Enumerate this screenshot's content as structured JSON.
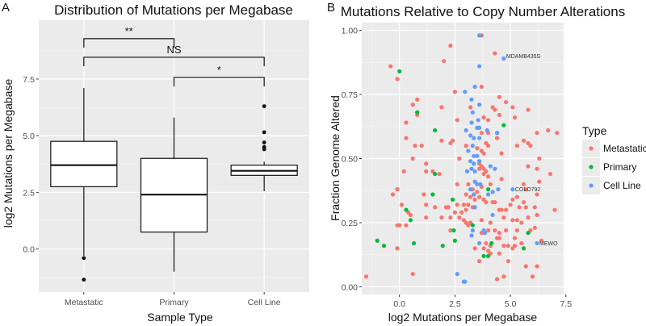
{
  "chart_data": [
    {
      "type": "box",
      "panel_label": "A",
      "title": "Distribution of Mutations per Megabase",
      "xlabel": "Sample Type",
      "ylabel": "log2 Mutations per Megabase",
      "ylim": [
        -1.9,
        10.7
      ],
      "yticks": [
        0.0,
        2.5,
        5.0,
        7.5
      ],
      "ytick_labels": [
        "0.0",
        "2.5",
        "5.0",
        "7.5"
      ],
      "grid": true,
      "categories": [
        "Metastatic",
        "Primary",
        "Cell Line"
      ],
      "boxes": [
        {
          "q1": 2.75,
          "median": 3.7,
          "q3": 4.75,
          "whisker_low": -0.3,
          "whisker_high": 7.1,
          "outliers": [
            -0.4,
            -1.35
          ]
        },
        {
          "q1": 0.75,
          "median": 2.4,
          "q3": 4.0,
          "whisker_low": -1.0,
          "whisker_high": 5.8,
          "outliers": []
        },
        {
          "q1": 3.25,
          "median": 3.45,
          "q3": 3.7,
          "whisker_low": 2.55,
          "whisker_high": 3.85,
          "outliers": [
            6.3,
            5.15,
            4.7,
            4.5,
            4.4
          ]
        }
      ],
      "comparisons": [
        {
          "from": 0,
          "to": 1,
          "y": 9.28,
          "label": "**"
        },
        {
          "from": 0,
          "to": 2,
          "y": 8.46,
          "label": "NS"
        },
        {
          "from": 1,
          "to": 2,
          "y": 7.57,
          "label": "*"
        }
      ]
    },
    {
      "type": "scatter",
      "panel_label": "B",
      "title": "Mutations Relative to Copy Number Alterations",
      "xlabel": "log2 Mutations per Megabase",
      "ylabel": "Fraction Genome Altered",
      "xlim": [
        -1.7,
        7.4
      ],
      "ylim": [
        -0.03,
        1.03
      ],
      "xticks": [
        0.0,
        2.5,
        5.0,
        7.5
      ],
      "xtick_labels": [
        "0.0",
        "2.5",
        "5.0",
        "7.5"
      ],
      "yticks": [
        0.0,
        0.25,
        0.5,
        0.75,
        1.0
      ],
      "ytick_labels": [
        "0.00",
        "0.25",
        "0.50",
        "0.75",
        "1.00"
      ],
      "grid": true,
      "legend": {
        "title": "Type",
        "placement": "right",
        "entries": [
          {
            "key": "m",
            "label": "Metastatic",
            "color": "#F8766D"
          },
          {
            "key": "p",
            "label": "Primary",
            "color": "#00BA38"
          },
          {
            "key": "c",
            "label": "Cell Line",
            "color": "#619CFF"
          }
        ]
      },
      "annotations": [
        {
          "text": "MDAMB435S",
          "x": 4.7,
          "y": 0.9
        },
        {
          "text": "COLO792",
          "x": 5.1,
          "y": 0.38
        },
        {
          "text": "MEWO",
          "x": 6.2,
          "y": 0.17
        }
      ],
      "points": [
        [
          3.7,
          0.98,
          "m"
        ],
        [
          2.3,
          0.94,
          "m"
        ],
        [
          4.3,
          0.91,
          "m"
        ],
        [
          2.0,
          0.88,
          "m"
        ],
        [
          -0.4,
          0.86,
          "m"
        ],
        [
          -0.1,
          0.81,
          "m"
        ],
        [
          2.5,
          0.76,
          "m"
        ],
        [
          3.7,
          0.78,
          "m"
        ],
        [
          4.5,
          0.74,
          "m"
        ],
        [
          4.8,
          0.72,
          "m"
        ],
        [
          0.8,
          0.73,
          "m"
        ],
        [
          0.6,
          0.71,
          "m"
        ],
        [
          1.9,
          0.7,
          "m"
        ],
        [
          3.2,
          0.7,
          "m"
        ],
        [
          4.2,
          0.7,
          "m"
        ],
        [
          4.3,
          0.69,
          "m"
        ],
        [
          5.1,
          0.7,
          "m"
        ],
        [
          5.8,
          0.69,
          "m"
        ],
        [
          0.8,
          0.67,
          "m"
        ],
        [
          3.8,
          0.66,
          "m"
        ],
        [
          4.5,
          0.67,
          "m"
        ],
        [
          5.2,
          0.66,
          "m"
        ],
        [
          0.3,
          0.64,
          "m"
        ],
        [
          2.6,
          0.65,
          "m"
        ],
        [
          4.0,
          0.65,
          "m"
        ],
        [
          3.7,
          0.6,
          "m"
        ],
        [
          4.0,
          0.6,
          "m"
        ],
        [
          4.4,
          0.58,
          "m"
        ],
        [
          6.2,
          0.6,
          "m"
        ],
        [
          6.7,
          0.61,
          "m"
        ],
        [
          7.1,
          0.6,
          "m"
        ],
        [
          0.3,
          0.58,
          "m"
        ],
        [
          1.9,
          0.57,
          "m"
        ],
        [
          2.3,
          0.56,
          "m"
        ],
        [
          2.4,
          0.57,
          "m"
        ],
        [
          3.9,
          0.56,
          "m"
        ],
        [
          4.0,
          0.55,
          "m"
        ],
        [
          5.3,
          0.55,
          "m"
        ],
        [
          5.6,
          0.57,
          "m"
        ],
        [
          5.9,
          0.55,
          "m"
        ],
        [
          5.8,
          0.56,
          "m"
        ],
        [
          0.7,
          0.55,
          "m"
        ],
        [
          1.0,
          0.55,
          "m"
        ],
        [
          3.0,
          0.55,
          "m"
        ],
        [
          3.7,
          0.53,
          "m"
        ],
        [
          3.5,
          0.54,
          "m"
        ],
        [
          3.8,
          0.52,
          "m"
        ],
        [
          4.6,
          0.52,
          "m"
        ],
        [
          2.7,
          0.5,
          "m"
        ],
        [
          0.6,
          0.5,
          "m"
        ],
        [
          1.2,
          0.48,
          "m"
        ],
        [
          3.6,
          0.48,
          "m"
        ],
        [
          3.7,
          0.47,
          "m"
        ],
        [
          3.8,
          0.46,
          "m"
        ],
        [
          3.9,
          0.45,
          "m"
        ],
        [
          3.6,
          0.46,
          "m"
        ],
        [
          3.8,
          0.44,
          "m"
        ],
        [
          4.0,
          0.43,
          "m"
        ],
        [
          6.2,
          0.46,
          "m"
        ],
        [
          6.3,
          0.5,
          "m"
        ],
        [
          5.8,
          0.47,
          "m"
        ],
        [
          6.8,
          0.44,
          "m"
        ],
        [
          0.2,
          0.45,
          "m"
        ],
        [
          1.2,
          0.45,
          "m"
        ],
        [
          1.5,
          0.45,
          "m"
        ],
        [
          1.8,
          0.44,
          "m"
        ],
        [
          4.6,
          0.42,
          "m"
        ],
        [
          6.3,
          0.41,
          "m"
        ],
        [
          5.7,
          0.38,
          "m"
        ],
        [
          5.6,
          0.4,
          "m"
        ],
        [
          2.6,
          0.4,
          "m"
        ],
        [
          3.1,
          0.4,
          "m"
        ],
        [
          3.7,
          0.39,
          "m"
        ],
        [
          4.1,
          0.4,
          "m"
        ],
        [
          3.3,
          0.38,
          "m"
        ],
        [
          3.5,
          0.37,
          "m"
        ],
        [
          3.0,
          0.36,
          "m"
        ],
        [
          3.2,
          0.35,
          "m"
        ],
        [
          3.4,
          0.34,
          "m"
        ],
        [
          3.6,
          0.35,
          "m"
        ],
        [
          3.8,
          0.34,
          "m"
        ],
        [
          3.9,
          0.33,
          "m"
        ],
        [
          4.2,
          0.33,
          "m"
        ],
        [
          4.3,
          0.33,
          "m"
        ],
        [
          5.1,
          0.34,
          "m"
        ],
        [
          5.3,
          0.35,
          "m"
        ],
        [
          5.6,
          0.33,
          "m"
        ],
        [
          6.2,
          0.36,
          "m"
        ],
        [
          1.1,
          0.36,
          "m"
        ],
        [
          -0.3,
          0.36,
          "m"
        ],
        [
          -0.1,
          0.38,
          "m"
        ],
        [
          0.1,
          0.32,
          "m"
        ],
        [
          1.2,
          0.32,
          "m"
        ],
        [
          1.6,
          0.31,
          "m"
        ],
        [
          2.1,
          0.31,
          "m"
        ],
        [
          2.2,
          0.31,
          "m"
        ],
        [
          2.6,
          0.32,
          "m"
        ],
        [
          2.9,
          0.32,
          "m"
        ],
        [
          3.1,
          0.32,
          "m"
        ],
        [
          3.3,
          0.31,
          "m"
        ],
        [
          3.0,
          0.3,
          "m"
        ],
        [
          2.8,
          0.29,
          "m"
        ],
        [
          2.5,
          0.29,
          "m"
        ],
        [
          4.5,
          0.3,
          "m"
        ],
        [
          4.6,
          0.3,
          "m"
        ],
        [
          4.8,
          0.3,
          "m"
        ],
        [
          5.0,
          0.32,
          "m"
        ],
        [
          5.4,
          0.31,
          "m"
        ],
        [
          5.7,
          0.31,
          "m"
        ],
        [
          6.1,
          0.31,
          "m"
        ],
        [
          7.0,
          0.3,
          "m"
        ],
        [
          0.4,
          0.29,
          "m"
        ],
        [
          0.5,
          0.28,
          "m"
        ],
        [
          2.3,
          0.27,
          "m"
        ],
        [
          2.7,
          0.27,
          "m"
        ],
        [
          2.9,
          0.26,
          "m"
        ],
        [
          3.0,
          0.25,
          "m"
        ],
        [
          3.1,
          0.24,
          "m"
        ],
        [
          3.2,
          0.25,
          "m"
        ],
        [
          3.7,
          0.26,
          "m"
        ],
        [
          4.1,
          0.25,
          "m"
        ],
        [
          4.7,
          0.27,
          "m"
        ],
        [
          5.1,
          0.26,
          "m"
        ],
        [
          5.3,
          0.26,
          "m"
        ],
        [
          5.5,
          0.25,
          "m"
        ],
        [
          5.8,
          0.27,
          "m"
        ],
        [
          6.2,
          0.28,
          "m"
        ],
        [
          1.9,
          0.27,
          "m"
        ],
        [
          1.2,
          0.27,
          "m"
        ],
        [
          -0.1,
          0.24,
          "m"
        ],
        [
          0.0,
          0.24,
          "m"
        ],
        [
          0.3,
          0.24,
          "m"
        ],
        [
          2.3,
          0.22,
          "m"
        ],
        [
          3.7,
          0.21,
          "m"
        ],
        [
          4.0,
          0.22,
          "m"
        ],
        [
          4.3,
          0.22,
          "m"
        ],
        [
          4.5,
          0.21,
          "m"
        ],
        [
          4.8,
          0.22,
          "m"
        ],
        [
          5.3,
          0.22,
          "m"
        ],
        [
          5.9,
          0.22,
          "m"
        ],
        [
          6.1,
          0.23,
          "m"
        ],
        [
          4.4,
          0.19,
          "m"
        ],
        [
          4.5,
          0.19,
          "m"
        ],
        [
          4.7,
          0.16,
          "m"
        ],
        [
          5.2,
          0.16,
          "m"
        ],
        [
          5.5,
          0.17,
          "m"
        ],
        [
          5.2,
          0.19,
          "m"
        ],
        [
          6.4,
          0.18,
          "m"
        ],
        [
          4.1,
          0.16,
          "m"
        ],
        [
          3.9,
          0.17,
          "m"
        ],
        [
          3.4,
          0.15,
          "m"
        ],
        [
          3.8,
          0.15,
          "m"
        ],
        [
          4.0,
          0.14,
          "m"
        ],
        [
          4.5,
          0.13,
          "m"
        ],
        [
          4.9,
          0.16,
          "m"
        ],
        [
          5.1,
          0.15,
          "m"
        ],
        [
          -0.1,
          0.15,
          "m"
        ],
        [
          4.1,
          0.13,
          "m"
        ],
        [
          3.6,
          0.1,
          "m"
        ],
        [
          4.9,
          0.1,
          "m"
        ],
        [
          5.7,
          0.08,
          "m"
        ],
        [
          6.2,
          0.08,
          "m"
        ],
        [
          4.4,
          0.03,
          "m"
        ],
        [
          4.7,
          0.04,
          "m"
        ],
        [
          6.0,
          0.04,
          "m"
        ],
        [
          0.6,
          0.05,
          "m"
        ],
        [
          -1.5,
          0.04,
          "m"
        ],
        [
          0.0,
          0.84,
          "p"
        ],
        [
          0.8,
          0.68,
          "p"
        ],
        [
          1.6,
          0.61,
          "p"
        ],
        [
          4.7,
          0.63,
          "p"
        ],
        [
          4.4,
          0.6,
          "p"
        ],
        [
          1.6,
          0.44,
          "p"
        ],
        [
          1.5,
          0.36,
          "p"
        ],
        [
          4.0,
          0.38,
          "p"
        ],
        [
          2.4,
          0.34,
          "p"
        ],
        [
          0.3,
          0.3,
          "p"
        ],
        [
          0.5,
          0.26,
          "p"
        ],
        [
          3.3,
          0.24,
          "p"
        ],
        [
          2.45,
          0.22,
          "p"
        ],
        [
          5.8,
          0.21,
          "p"
        ],
        [
          2.5,
          0.18,
          "p"
        ],
        [
          -1.0,
          0.18,
          "p"
        ],
        [
          -0.7,
          0.16,
          "p"
        ],
        [
          0.65,
          0.17,
          "p"
        ],
        [
          1.95,
          0.16,
          "p"
        ],
        [
          4.15,
          0.17,
          "p"
        ],
        [
          5.6,
          0.15,
          "p"
        ],
        [
          3.8,
          0.12,
          "p"
        ],
        [
          4.0,
          0.12,
          "p"
        ],
        [
          3.6,
          0.98,
          "c"
        ],
        [
          4.7,
          0.89,
          "c"
        ],
        [
          3.6,
          0.86,
          "c"
        ],
        [
          3.4,
          0.78,
          "c"
        ],
        [
          2.95,
          0.76,
          "c"
        ],
        [
          3.25,
          0.73,
          "c"
        ],
        [
          3.6,
          0.71,
          "c"
        ],
        [
          3.3,
          0.68,
          "c"
        ],
        [
          3.55,
          0.65,
          "c"
        ],
        [
          3.25,
          0.64,
          "c"
        ],
        [
          3.5,
          0.62,
          "c"
        ],
        [
          3.6,
          0.62,
          "c"
        ],
        [
          3.0,
          0.61,
          "c"
        ],
        [
          3.95,
          0.61,
          "c"
        ],
        [
          4.4,
          0.6,
          "c"
        ],
        [
          3.2,
          0.59,
          "c"
        ],
        [
          3.35,
          0.58,
          "c"
        ],
        [
          3.6,
          0.58,
          "c"
        ],
        [
          3.3,
          0.55,
          "c"
        ],
        [
          3.1,
          0.53,
          "c"
        ],
        [
          3.35,
          0.51,
          "c"
        ],
        [
          3.5,
          0.51,
          "c"
        ],
        [
          3.6,
          0.49,
          "c"
        ],
        [
          3.2,
          0.49,
          "c"
        ],
        [
          3.35,
          0.48,
          "c"
        ],
        [
          3.25,
          0.46,
          "c"
        ],
        [
          3.4,
          0.45,
          "c"
        ],
        [
          4.1,
          0.47,
          "c"
        ],
        [
          4.3,
          0.46,
          "c"
        ],
        [
          3.05,
          0.45,
          "c"
        ],
        [
          3.4,
          0.41,
          "c"
        ],
        [
          3.5,
          0.4,
          "c"
        ],
        [
          3.65,
          0.4,
          "c"
        ],
        [
          3.2,
          0.38,
          "c"
        ],
        [
          4.45,
          0.38,
          "c"
        ],
        [
          5.1,
          0.38,
          "c"
        ],
        [
          3.35,
          0.36,
          "c"
        ],
        [
          4.0,
          0.36,
          "c"
        ],
        [
          4.2,
          0.37,
          "c"
        ],
        [
          3.4,
          0.31,
          "c"
        ],
        [
          4.2,
          0.28,
          "c"
        ],
        [
          3.3,
          0.22,
          "c"
        ],
        [
          3.25,
          0.2,
          "c"
        ],
        [
          3.8,
          0.22,
          "c"
        ],
        [
          3.85,
          0.21,
          "c"
        ],
        [
          3.6,
          0.17,
          "c"
        ],
        [
          6.2,
          0.17,
          "c"
        ],
        [
          2.6,
          0.05,
          "c"
        ],
        [
          2.9,
          0.02,
          "c"
        ],
        [
          2.95,
          0.02,
          "c"
        ]
      ]
    }
  ]
}
